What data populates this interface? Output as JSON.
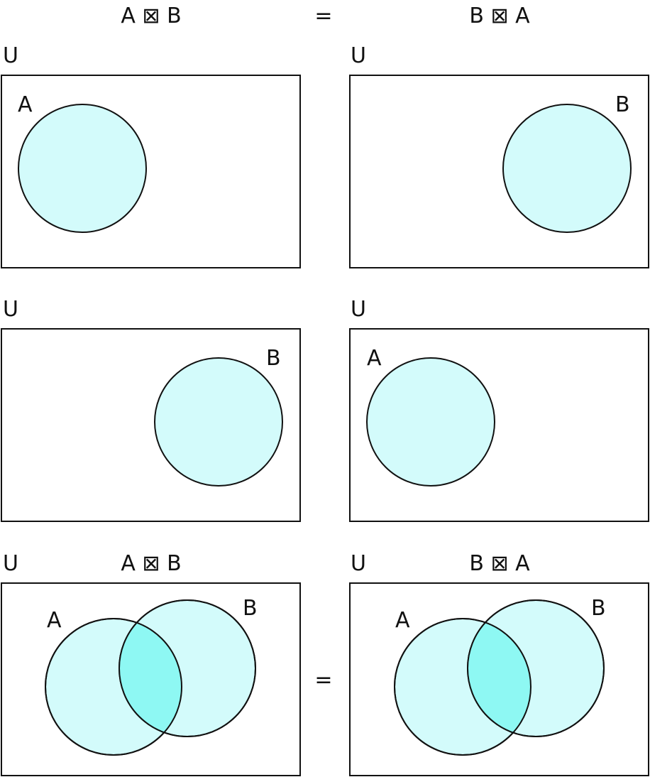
{
  "colors": {
    "background": "#ffffff",
    "stroke": "#111111",
    "set_fill": "#d3fbfb",
    "intersection_fill": "#8ef8f3"
  },
  "header": {
    "left": "A ⊠ B",
    "equals": "=",
    "right": "B ⊠ A"
  },
  "universe_label": "U",
  "set_a_label": "A",
  "set_b_label": "B",
  "bottom": {
    "left_title": "A ⊠ B",
    "equals": "=",
    "right_title": "B ⊠ A"
  }
}
